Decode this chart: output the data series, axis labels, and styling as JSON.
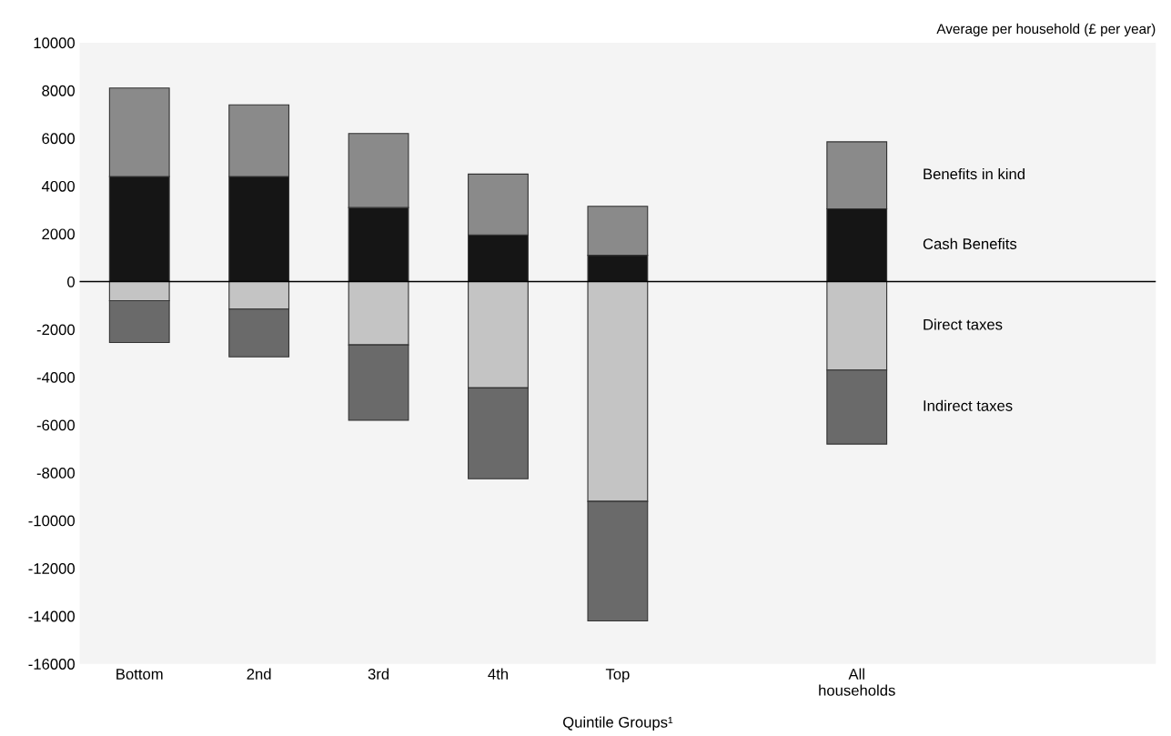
{
  "chart_data": {
    "type": "bar",
    "stacked": true,
    "ylabel": "Average per household (£ per year)",
    "xlabel": "Quintile Groups¹",
    "categories": [
      "Bottom",
      "2nd",
      "3rd",
      "4th",
      "Top",
      null,
      "All\nhouseholds"
    ],
    "series": [
      {
        "name": "Cash Benefits",
        "color": "#151515",
        "values": [
          4400,
          4400,
          3100,
          1950,
          1100,
          null,
          3050
        ]
      },
      {
        "name": "Benefits in kind",
        "color": "#8a8a8a",
        "values": [
          3700,
          3000,
          3100,
          2550,
          2050,
          null,
          2800
        ]
      },
      {
        "name": "Direct taxes",
        "color": "#c4c4c4",
        "values": [
          -800,
          -1150,
          -2650,
          -4450,
          -9200,
          null,
          -3700
        ]
      },
      {
        "name": "Indirect taxes",
        "color": "#6a6a6a",
        "values": [
          -1750,
          -2000,
          -3150,
          -3800,
          -5000,
          null,
          -3100
        ]
      }
    ],
    "ylim": [
      -16000,
      10000
    ],
    "yticks": [
      {
        "value": -16000,
        "label": "-16000"
      },
      {
        "value": -14000,
        "label": "-14000"
      },
      {
        "value": -12000,
        "label": "-12000"
      },
      {
        "value": -10000,
        "label": "-10000"
      },
      {
        "value": -8000,
        "label": "-8000"
      },
      {
        "value": -6000,
        "label": "-6000"
      },
      {
        "value": -4000,
        "label": "-4000"
      },
      {
        "value": -2000,
        "label": "-2000"
      },
      0,
      2000,
      4000,
      6000,
      8000,
      10000
    ],
    "ref_lines": [
      {
        "axis": "y",
        "value": 0,
        "label": null,
        "color": "#000000"
      }
    ],
    "grid": false,
    "legend": "right"
  }
}
